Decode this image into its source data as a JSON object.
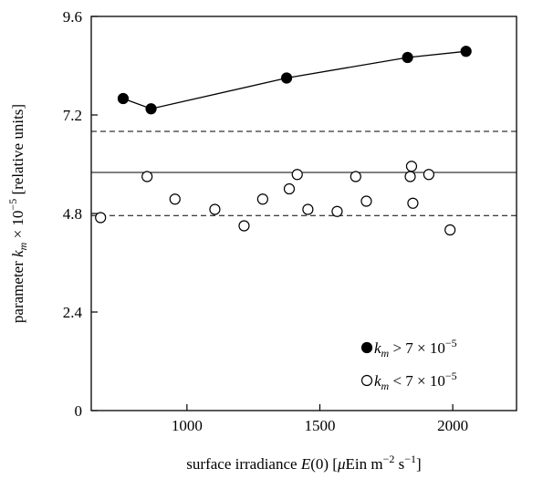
{
  "chart_data": {
    "type": "scatter",
    "title": "",
    "xlabel": "surface irradiance E(0)  [μEin m−2 s−1]",
    "ylabel": "parameter km × 10−5  [relative units]",
    "xlim": [
      640,
      2240
    ],
    "ylim": [
      0,
      9.6
    ],
    "x_ticks": [
      1000,
      1500,
      2000
    ],
    "x_tick_labels": [
      "1000",
      "1500",
      "2000"
    ],
    "y_ticks": [
      0,
      2.4,
      4.8,
      7.2,
      9.6
    ],
    "y_tick_labels": [
      "0",
      "2.4",
      "4.8",
      "7.2",
      "9.6"
    ],
    "grid": false,
    "legend_position": "bottom-right",
    "series": [
      {
        "name": "km > 7 × 10−5",
        "marker": "filled-circle",
        "connected": true,
        "color": "#000000",
        "points": [
          {
            "x": 760,
            "y": 7.6
          },
          {
            "x": 865,
            "y": 7.35
          },
          {
            "x": 1375,
            "y": 8.1
          },
          {
            "x": 1830,
            "y": 8.6
          },
          {
            "x": 2050,
            "y": 8.75
          }
        ]
      },
      {
        "name": "km < 7 × 10−5",
        "marker": "open-circle",
        "connected": false,
        "color": "#000000",
        "points": [
          {
            "x": 675,
            "y": 4.7
          },
          {
            "x": 850,
            "y": 5.7
          },
          {
            "x": 955,
            "y": 5.15
          },
          {
            "x": 1105,
            "y": 4.9
          },
          {
            "x": 1215,
            "y": 4.5
          },
          {
            "x": 1285,
            "y": 5.15
          },
          {
            "x": 1385,
            "y": 5.4
          },
          {
            "x": 1415,
            "y": 5.75
          },
          {
            "x": 1455,
            "y": 4.9
          },
          {
            "x": 1565,
            "y": 4.85
          },
          {
            "x": 1635,
            "y": 5.7
          },
          {
            "x": 1675,
            "y": 5.1
          },
          {
            "x": 1840,
            "y": 5.7
          },
          {
            "x": 1845,
            "y": 5.95
          },
          {
            "x": 1850,
            "y": 5.05
          },
          {
            "x": 1910,
            "y": 5.75
          },
          {
            "x": 1990,
            "y": 4.4
          }
        ]
      }
    ],
    "reference_lines": [
      {
        "y": 6.8,
        "style": "dashed"
      },
      {
        "y": 5.8,
        "style": "solid"
      },
      {
        "y": 4.75,
        "style": "dashed"
      }
    ]
  }
}
